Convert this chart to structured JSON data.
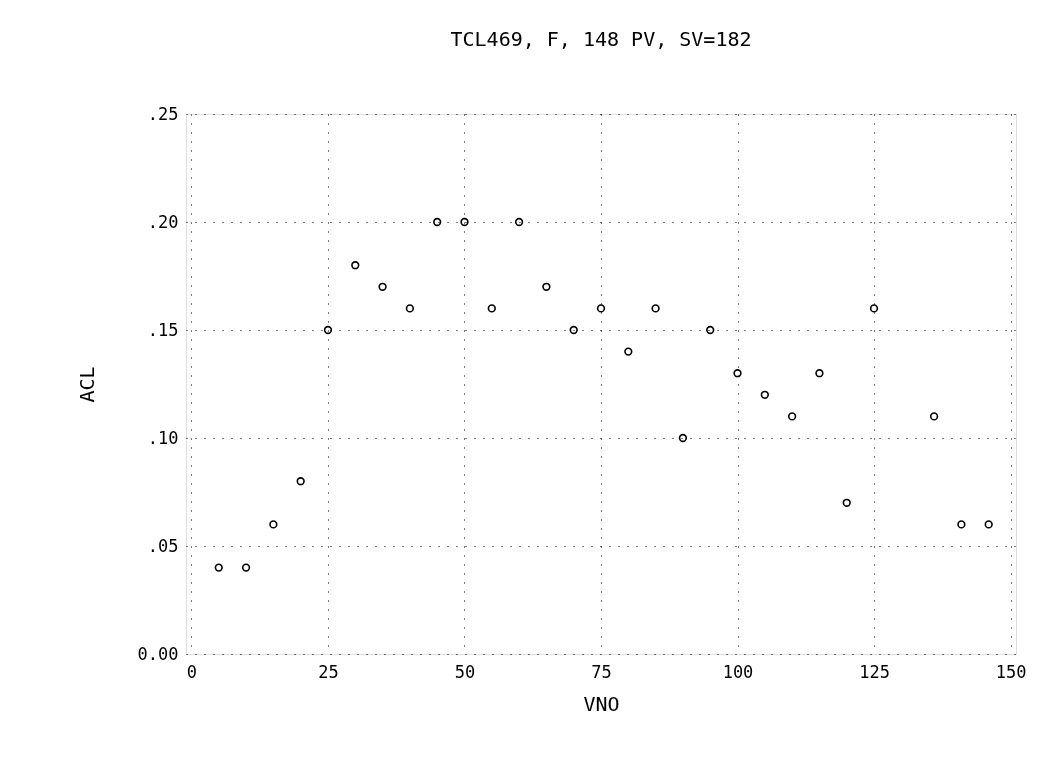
{
  "chart_data": {
    "type": "scatter",
    "title": "TCL469, F, 148 PV, SV=182",
    "xlabel": "VNO",
    "ylabel": "ACL",
    "x": [
      5,
      10,
      15,
      20,
      25,
      30,
      35,
      40,
      45,
      50,
      55,
      60,
      65,
      70,
      75,
      80,
      85,
      90,
      95,
      100,
      105,
      110,
      115,
      120,
      125,
      136,
      141,
      146
    ],
    "series": [
      {
        "color": "#000000",
        "values": [
          0.04,
          0.04,
          0.06,
          0.08,
          0.15,
          0.18,
          0.17,
          0.16,
          0.2,
          0.2,
          0.16,
          0.2,
          0.17,
          0.15,
          0.16,
          0.14,
          0.16,
          0.1,
          0.15,
          0.13,
          0.12,
          0.11,
          0.13,
          0.07,
          0.16,
          0.11,
          0.06,
          0.06
        ]
      }
    ],
    "xlim": [
      -1,
      151
    ],
    "ylim": [
      0,
      0.25
    ],
    "xticks": [
      0,
      25,
      50,
      75,
      100,
      125,
      150
    ],
    "yticks": [
      {
        "value": 0,
        "label": "0.00"
      },
      {
        "value": 0.05,
        "label": ".05"
      },
      {
        "value": 0.1,
        "label": ".10"
      },
      {
        "value": 0.15,
        "label": ".15"
      },
      {
        "value": 0.2,
        "label": ".20"
      },
      {
        "value": 0.25,
        "label": ".25"
      }
    ],
    "grid": true,
    "marker": "circle"
  }
}
